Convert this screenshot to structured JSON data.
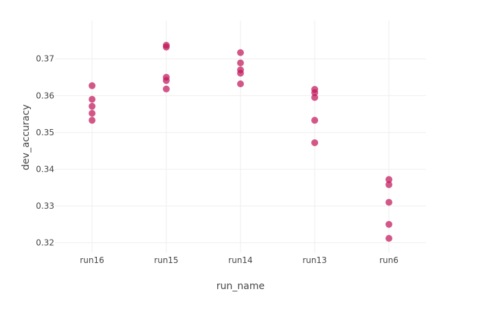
{
  "chart_data": {
    "type": "scatter",
    "title": "",
    "xlabel": "run_name",
    "ylabel": "dev_accuracy",
    "categories": [
      "run16",
      "run15",
      "run14",
      "run13",
      "run6"
    ],
    "yticks": [
      "0.32",
      "0.33",
      "0.34",
      "0.35",
      "0.36",
      "0.37"
    ],
    "ylim": [
      0.3173,
      0.3804
    ],
    "grid": true,
    "legend": "none",
    "marker_color": "#c2185b",
    "series": [
      {
        "points": [
          {
            "x": "run16",
            "y": 0.3627
          },
          {
            "x": "run16",
            "y": 0.359
          },
          {
            "x": "run16",
            "y": 0.3571
          },
          {
            "x": "run16",
            "y": 0.3552
          },
          {
            "x": "run16",
            "y": 0.3533
          },
          {
            "x": "run15",
            "y": 0.3737
          },
          {
            "x": "run15",
            "y": 0.3732
          },
          {
            "x": "run15",
            "y": 0.365
          },
          {
            "x": "run15",
            "y": 0.3641
          },
          {
            "x": "run15",
            "y": 0.3618
          },
          {
            "x": "run14",
            "y": 0.3717
          },
          {
            "x": "run14",
            "y": 0.3689
          },
          {
            "x": "run14",
            "y": 0.367
          },
          {
            "x": "run14",
            "y": 0.3661
          },
          {
            "x": "run14",
            "y": 0.3632
          },
          {
            "x": "run13",
            "y": 0.3617
          },
          {
            "x": "run13",
            "y": 0.3608
          },
          {
            "x": "run13",
            "y": 0.3595
          },
          {
            "x": "run13",
            "y": 0.3533
          },
          {
            "x": "run13",
            "y": 0.3472
          },
          {
            "x": "run6",
            "y": 0.3372
          },
          {
            "x": "run6",
            "y": 0.3358
          },
          {
            "x": "run6",
            "y": 0.331
          },
          {
            "x": "run6",
            "y": 0.325
          },
          {
            "x": "run6",
            "y": 0.3212
          }
        ]
      }
    ]
  }
}
